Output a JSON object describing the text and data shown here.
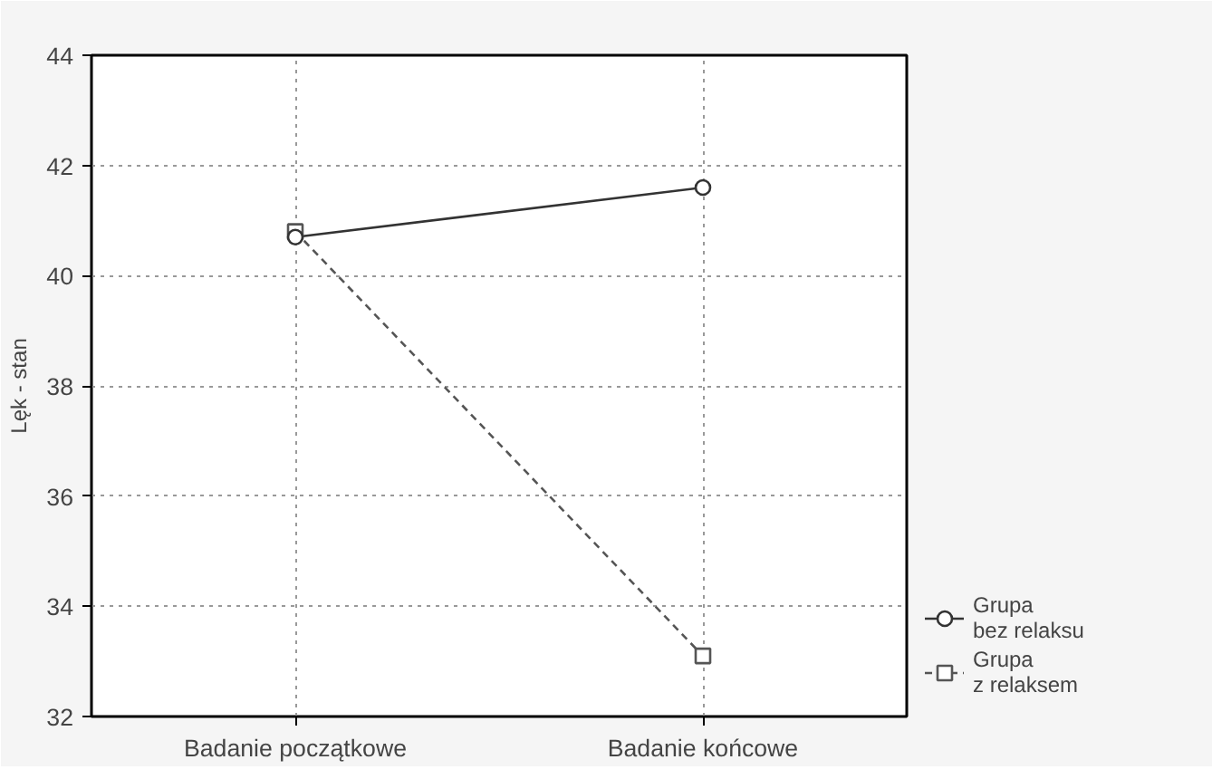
{
  "chart_data": {
    "type": "line",
    "ylabel": "Lęk - stan",
    "categories": [
      "Badanie początkowe",
      "Badanie końcowe"
    ],
    "series": [
      {
        "name": "Grupa\nbez relaksu",
        "color": "#333333",
        "values": [
          40.7,
          41.6
        ],
        "marker": "circle",
        "line_style": "solid"
      },
      {
        "name": "Grupa\nz relaksem",
        "color": "#555555",
        "values": [
          40.8,
          33.1
        ],
        "marker": "square",
        "line_style": "dashed"
      }
    ],
    "ylim": [
      32,
      44
    ],
    "yticks": [
      32,
      34,
      36,
      38,
      40,
      42,
      44
    ],
    "grid": true,
    "legend": "bottom right"
  }
}
